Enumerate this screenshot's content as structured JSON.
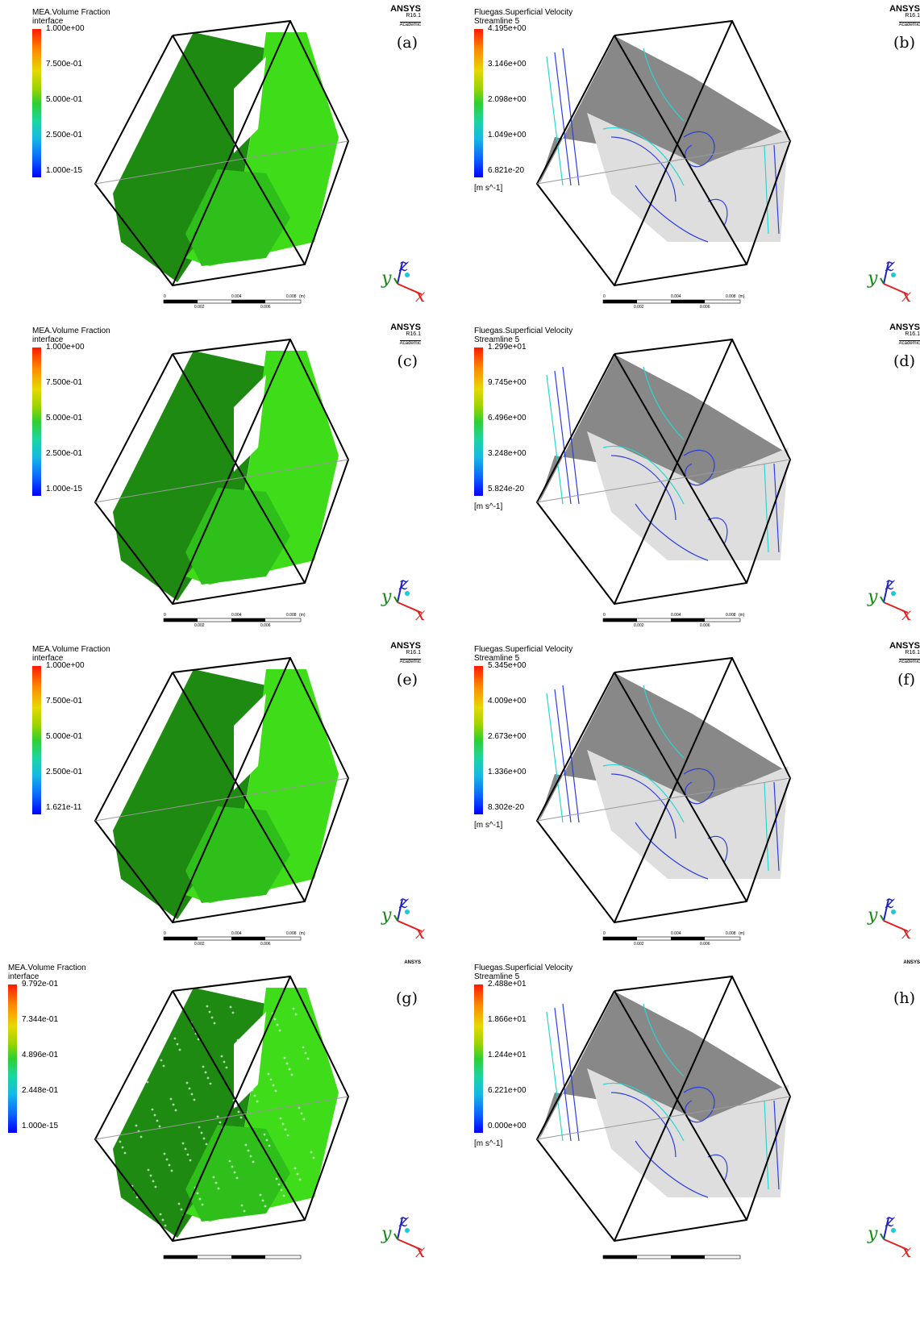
{
  "panels": [
    {
      "id": "a",
      "label": "(a)",
      "variable_title": "MEA.Volume Fraction",
      "variable_sub": "interface",
      "ticks": [
        "1.000e+00",
        "7.500e-01",
        "5.000e-01",
        "2.500e-01",
        "1.000e-15"
      ],
      "unit": "",
      "kind": "volume",
      "vendor": "ANSYS",
      "version": "R16.1",
      "license": "Academic",
      "scale_labels": [
        "0",
        "0.004",
        "0.008",
        "(m)",
        "0.002",
        "0.006"
      ]
    },
    {
      "id": "b",
      "label": "(b)",
      "variable_title": "Fluegas.Superficial Velocity",
      "variable_sub": "Streamline 5",
      "ticks": [
        "4.195e+00",
        "3.146e+00",
        "2.098e+00",
        "1.049e+00",
        "6.821e-20"
      ],
      "unit": "[m s^-1]",
      "kind": "stream",
      "vendor": "ANSYS",
      "version": "R16.1",
      "license": "Academic",
      "scale_labels": [
        "0",
        "0.004",
        "0.008",
        "(m)",
        "0.002",
        "0.006"
      ]
    },
    {
      "id": "c",
      "label": "(c)",
      "variable_title": "MEA.Volume Fraction",
      "variable_sub": "interface",
      "ticks": [
        "1.000e+00",
        "7.500e-01",
        "5.000e-01",
        "2.500e-01",
        "1.000e-15"
      ],
      "unit": "",
      "kind": "volume",
      "vendor": "ANSYS",
      "version": "R16.1",
      "license": "Academic",
      "scale_labels": [
        "0",
        "0.004",
        "0.008",
        "(m)",
        "0.002",
        "0.006"
      ]
    },
    {
      "id": "d",
      "label": "(d)",
      "variable_title": "Fluegas.Superficial Velocity",
      "variable_sub": "Streamline 5",
      "ticks": [
        "1.299e+01",
        "9.745e+00",
        "6.496e+00",
        "3.248e+00",
        "5.824e-20"
      ],
      "unit": "[m s^-1]",
      "kind": "stream",
      "vendor": "ANSYS",
      "version": "R16.1",
      "license": "Academic",
      "scale_labels": [
        "0",
        "0.004",
        "0.008",
        "(m)",
        "0.002",
        "0.006"
      ]
    },
    {
      "id": "e",
      "label": "(e)",
      "variable_title": "MEA.Volume Fraction",
      "variable_sub": "interface",
      "ticks": [
        "1.000e+00",
        "7.500e-01",
        "5.000e-01",
        "2.500e-01",
        "1.621e-11"
      ],
      "unit": "",
      "kind": "volume",
      "vendor": "ANSYS",
      "version": "R16.1",
      "license": "Academic",
      "scale_labels": [
        "0",
        "0.004",
        "0.008",
        "(m)",
        "0.002",
        "0.006"
      ]
    },
    {
      "id": "f",
      "label": "(f)",
      "variable_title": "Fluegas.Superficial Velocity",
      "variable_sub": "Streamline 5",
      "ticks": [
        "5.345e+00",
        "4.009e+00",
        "2.673e+00",
        "1.336e+00",
        "8.302e-20"
      ],
      "unit": "[m s^-1]",
      "kind": "stream",
      "vendor": "ANSYS",
      "version": "R16.1",
      "license": "Academic",
      "scale_labels": [
        "0",
        "0.004",
        "0.008",
        "(m)",
        "0.002",
        "0.006"
      ]
    },
    {
      "id": "g",
      "label": "(g)",
      "variable_title": "MEA.Volume Fraction",
      "variable_sub": "interface",
      "ticks": [
        "9.792e-01",
        "7.344e-01",
        "4.896e-01",
        "2.448e-01",
        "1.000e-15"
      ],
      "unit": "",
      "kind": "volume-rough",
      "vendor": "ANSYS",
      "version": "",
      "license": "",
      "scale_labels": []
    },
    {
      "id": "h",
      "label": "(h)",
      "variable_title": "Fluegas.Superficial Velocity",
      "variable_sub": "Streamline 5",
      "ticks": [
        "2.488e+01",
        "1.866e+01",
        "1.244e+01",
        "6.221e+00",
        "0.000e+00"
      ],
      "unit": "[m s^-1]",
      "kind": "stream",
      "vendor": "ANSYS",
      "version": "",
      "license": "",
      "scale_labels": []
    }
  ],
  "axis_labels": {
    "x": "x",
    "y": "y",
    "z": "z"
  },
  "colors": {
    "green_dark": "#1e8a12",
    "green_light": "#3fdc1a",
    "slice_dark": "#888888",
    "slice_light": "#dedede",
    "stream_blue": "#2d3ee0",
    "stream_cyan": "#2ad6d0",
    "axis_x": "#e02020",
    "axis_y": "#158a15",
    "axis_z": "#2020c0"
  }
}
